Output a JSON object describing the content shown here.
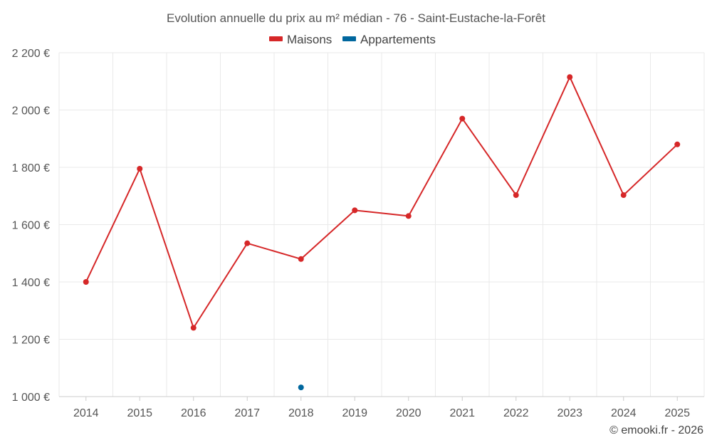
{
  "chart_data": {
    "type": "line",
    "title": "Evolution annuelle du prix au m² médian - 76 - Saint-Eustache-la-Forêt",
    "categories": [
      "2014",
      "2015",
      "2016",
      "2017",
      "2018",
      "2019",
      "2020",
      "2021",
      "2022",
      "2023",
      "2024",
      "2025"
    ],
    "ylim": [
      1000,
      2200
    ],
    "yticks": [
      1000,
      1200,
      1400,
      1600,
      1800,
      2000,
      2200
    ],
    "ytick_labels": [
      "1 000 €",
      "1 200 €",
      "1 400 €",
      "1 600 €",
      "1 800 €",
      "2 000 €",
      "2 200 €"
    ],
    "series": [
      {
        "name": "Maisons",
        "color": "#d62728",
        "values": [
          1400,
          1795,
          1240,
          1535,
          1480,
          1650,
          1630,
          1970,
          1703,
          2115,
          1703,
          1880
        ]
      },
      {
        "name": "Appartements",
        "color": "#00679e",
        "values": [
          null,
          null,
          null,
          null,
          1032,
          null,
          null,
          null,
          null,
          null,
          null,
          null
        ]
      }
    ],
    "grid": true,
    "legend_position": "top-center",
    "credit": "© emooki.fr - 2026"
  }
}
